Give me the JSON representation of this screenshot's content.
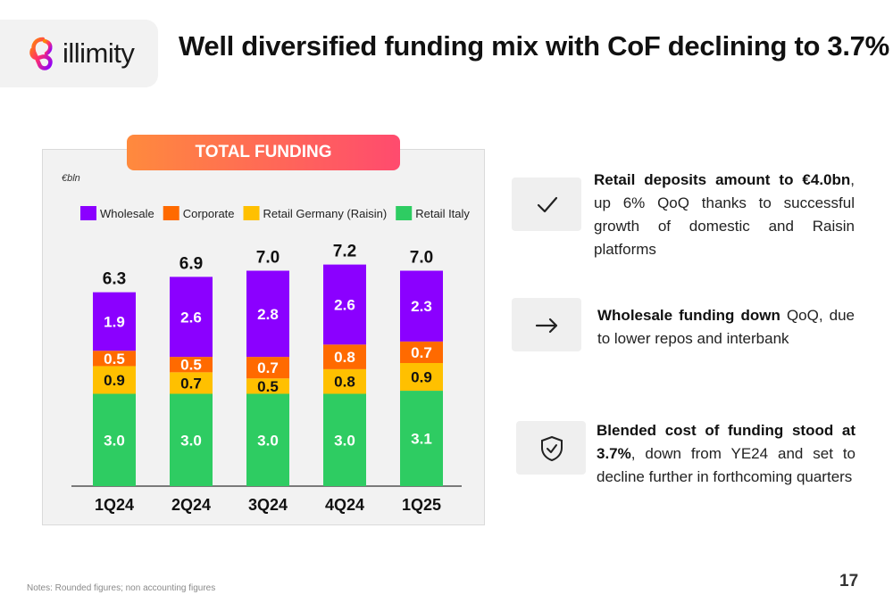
{
  "header": {
    "logo_text": "illimity",
    "title": "Well diversified funding mix with CoF declining to 3.7%"
  },
  "badge": "TOTAL FUNDING",
  "chart_data": {
    "type": "bar",
    "stacked": true,
    "unit": "€bln",
    "categories": [
      "1Q24",
      "2Q24",
      "3Q24",
      "4Q24",
      "1Q25"
    ],
    "series": [
      {
        "name": "Retail Italy",
        "color": "#2ecc62",
        "values": [
          3.0,
          3.0,
          3.0,
          3.0,
          3.1
        ]
      },
      {
        "name": "Retail Germany (Raisin)",
        "color": "#ffc000",
        "values": [
          0.9,
          0.7,
          0.5,
          0.8,
          0.9
        ]
      },
      {
        "name": "Corporate",
        "color": "#ff6a00",
        "values": [
          0.5,
          0.5,
          0.7,
          0.8,
          0.7
        ]
      },
      {
        "name": "Wholesale",
        "color": "#8b00ff",
        "values": [
          1.9,
          2.6,
          2.8,
          2.6,
          2.3
        ]
      }
    ],
    "legend_order": [
      "Wholesale",
      "Corporate",
      "Retail Germany (Raisin)",
      "Retail Italy"
    ],
    "totals": [
      6.3,
      6.9,
      7.0,
      7.2,
      7.0
    ],
    "legend": "top"
  },
  "points": [
    {
      "bold": "Retail deposits amount to €4.0bn",
      "rest": ", up 6% QoQ thanks to successful growth of domestic and Raisin platforms",
      "icon": "check-icon"
    },
    {
      "bold": "Wholesale funding down",
      "rest": " QoQ, due to lower repos and interbank",
      "icon": "arrow-right-icon"
    },
    {
      "bold": "Blended cost of funding stood at 3.7%",
      "rest": ", down from YE24 and set to decline further in forthcoming quarters",
      "icon": "shield-check-icon"
    }
  ],
  "notes": "Notes: Rounded figures; non accounting figures",
  "page_number": "17"
}
